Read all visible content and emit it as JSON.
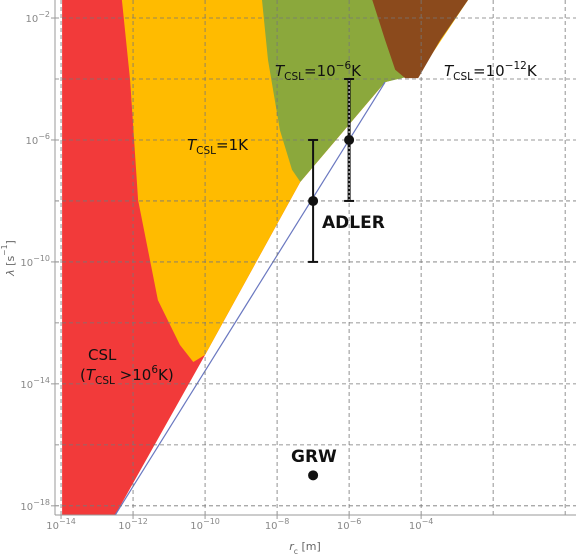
{
  "chart_data": {
    "type": "region",
    "xlog": true,
    "ylog": true,
    "xlim": [
      6.8e-15,
      2.0
    ],
    "ylim": [
      5e-19,
      0.039
    ],
    "xticks": [
      {
        "value": 1e-14,
        "label": "10−14"
      },
      {
        "value": 1e-12,
        "label": "10−12"
      },
      {
        "value": 1e-10,
        "label": "10−10"
      },
      {
        "value": 1e-08,
        "label": "10−8"
      },
      {
        "value": 1e-06,
        "label": "10−6"
      },
      {
        "value": 0.0001,
        "label": "10−4"
      }
    ],
    "yticks": [
      {
        "value": 0.01,
        "label": "10−2"
      },
      {
        "value": 1e-06,
        "label": "10−6"
      },
      {
        "value": 1e-10,
        "label": "10−10"
      },
      {
        "value": 1e-14,
        "label": "10−14"
      },
      {
        "value": 1e-18,
        "label": "10−18"
      }
    ],
    "xgrid": [
      1e-14,
      1e-12,
      1e-10,
      1e-08,
      1e-06,
      0.0001,
      0.01,
      1
    ],
    "ygrid": [
      0.01,
      0.0001,
      1e-06,
      1e-08,
      1e-10,
      1e-12,
      1e-14,
      1e-16,
      1e-18
    ],
    "grid": true,
    "xlabel": {
      "segments": [
        "r",
        "c",
        " [m]"
      ],
      "styles": [
        "i",
        "sub",
        "n"
      ]
    },
    "ylabel": {
      "segments": [
        "λ",
        " [s",
        "−1",
        "]"
      ],
      "styles": [
        "i",
        "n",
        "sup",
        "n"
      ]
    },
    "regions": [
      {
        "color": "#f23a3a",
        "x": [
          1.07e-14,
          0.002,
          0.00034,
          9.3e-05,
          1e-05,
          4.4e-08,
          1e-10,
          3.2e-13,
          1.07e-14
        ],
        "y": [
          0.039,
          0.039,
          0.0019,
          0.00017,
          7.9e-05,
          4.2e-08,
          8.9e-14,
          5e-19,
          5e-19
        ]
      },
      {
        "color": "#ffbb00",
        "x": [
          4.9e-13,
          8.3e-13,
          1.38e-12,
          4.9e-12,
          2e-11,
          4.7e-11,
          1e-10,
          4.4e-08,
          1e-05,
          9.3e-05,
          0.002
        ],
        "y": [
          0.039,
          9.3e-05,
          1.07e-08,
          5.6e-12,
          1.9e-13,
          5.2e-14,
          8.9e-14,
          4.2e-08,
          7.9e-05,
          0.00017,
          0.039
        ]
      },
      {
        "color": "#8ba83c",
        "x": [
          3.8e-09,
          5.6e-09,
          1.2e-08,
          2.6e-08,
          4.4e-08,
          1e-05,
          6.8e-05,
          0.00034,
          0.002
        ],
        "y": [
          0.039,
          0.00042,
          2.1e-06,
          1.05e-07,
          4.2e-08,
          7.9e-05,
          0.000135,
          0.0019,
          0.039
        ]
      },
      {
        "color": "#8b4a1c",
        "x": [
          4.4e-06,
          1e-05,
          1.9e-05,
          3.6e-05,
          8.3e-05,
          0.00034,
          0.002
        ],
        "y": [
          0.039,
          0.0019,
          0.0002,
          0.000107,
          0.000107,
          0.0019,
          0.039
        ]
      }
    ],
    "boundary": {
      "color": "#6a78c0",
      "x": [
        3.2e-13,
        1e-05
      ],
      "y": [
        5e-19,
        7.9e-05
      ]
    },
    "series": [
      {
        "name": "ADLER",
        "color": "#111111",
        "x": [
          1e-07,
          1e-06
        ],
        "values": [
          1e-08,
          1e-06
        ],
        "ylow": [
          1e-10,
          1e-08
        ],
        "yhigh": [
          1e-06,
          0.0001
        ],
        "bar_styles": [
          "solid",
          "dotted"
        ]
      },
      {
        "name": "GRW",
        "color": "#111111",
        "x": [
          1e-07
        ],
        "values": [
          1e-17
        ]
      }
    ],
    "annotations": [
      {
        "segments": [
          "CSL"
        ],
        "styles": [
          "n"
        ]
      },
      {
        "segments": [
          "(",
          "T",
          "CSL",
          " >10",
          "6",
          "K)"
        ],
        "styles": [
          "n",
          "i",
          "sub",
          "n",
          "sup",
          "n"
        ]
      },
      {
        "segments": [
          "T",
          "CSL",
          "=1K"
        ],
        "styles": [
          "i",
          "sub",
          "n"
        ]
      },
      {
        "segments": [
          "T",
          "CSL",
          "=10",
          "−6",
          "K"
        ],
        "styles": [
          "i",
          "sub",
          "n",
          "sup",
          "n"
        ]
      },
      {
        "segments": [
          "T",
          "CSL",
          "=10",
          "−12",
          "K"
        ],
        "styles": [
          "i",
          "sub",
          "n",
          "sup",
          "n"
        ]
      }
    ]
  }
}
